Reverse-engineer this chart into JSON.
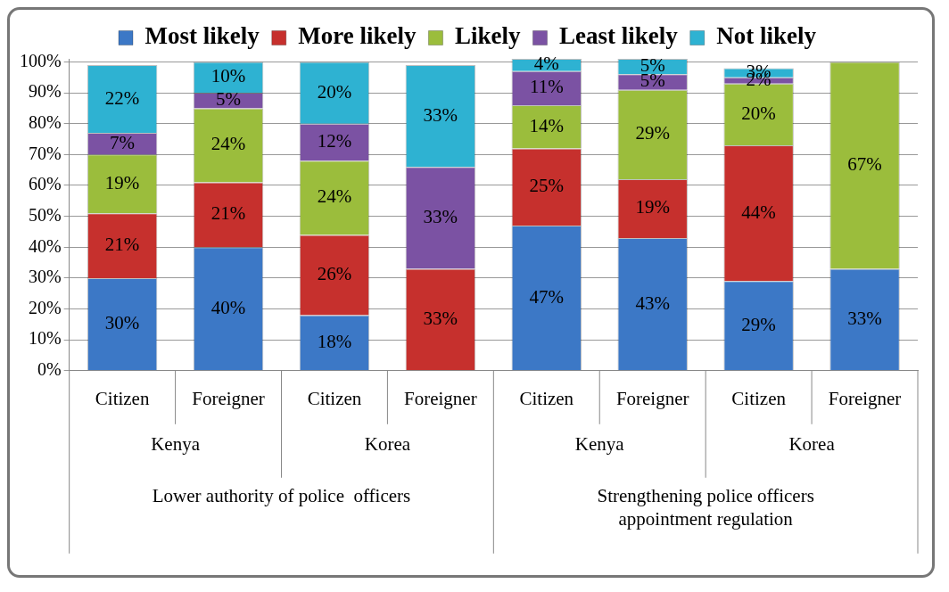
{
  "chart_data": {
    "type": "bar",
    "stacked": true,
    "categories": [
      "Citizen",
      "Foreigner",
      "Citizen",
      "Foreigner",
      "Citizen",
      "Foreigner",
      "Citizen",
      "Foreigner"
    ],
    "series": [
      {
        "name": "Most likely",
        "color": "#3c78c6",
        "values": [
          30,
          40,
          18,
          null,
          47,
          43,
          29,
          33
        ],
        "value_labels": [
          "30%",
          "40%",
          "18%",
          null,
          "47%",
          "43%",
          "29%",
          "33%"
        ]
      },
      {
        "name": "More likely",
        "color": "#c6302d",
        "values": [
          21,
          21,
          26,
          33,
          25,
          19,
          44,
          null
        ],
        "value_labels": [
          "21%",
          "21%",
          "26%",
          "33%",
          "25%",
          "19%",
          "44%",
          null
        ]
      },
      {
        "name": "Likely",
        "color": "#9bbd3c",
        "values": [
          19,
          24,
          24,
          null,
          14,
          29,
          20,
          67
        ],
        "value_labels": [
          "19%",
          "24%",
          "24%",
          null,
          "14%",
          "29%",
          "20%",
          "67%"
        ]
      },
      {
        "name": "Least likely",
        "color": "#7b52a3",
        "values": [
          7,
          5,
          12,
          33,
          11,
          5,
          2,
          null
        ],
        "value_labels": [
          "7%",
          "5%",
          "12%",
          "33%",
          "11%",
          "5%",
          "2%",
          null
        ]
      },
      {
        "name": "Not likely",
        "color": "#2eb2d2",
        "values": [
          22,
          10,
          20,
          33,
          4,
          5,
          3,
          null
        ],
        "value_labels": [
          "22%",
          "10%",
          "20%",
          "33%",
          "4%",
          "5%",
          "3%",
          null
        ]
      }
    ],
    "ylim": [
      0,
      101
    ],
    "yticks": [
      {
        "value": 0,
        "label": "0%"
      },
      {
        "value": 10,
        "label": "10%"
      },
      {
        "value": 20,
        "label": "20%"
      },
      {
        "value": 30,
        "label": "30%"
      },
      {
        "value": 40,
        "label": "40%"
      },
      {
        "value": 50,
        "label": "50%"
      },
      {
        "value": 60,
        "label": "60%"
      },
      {
        "value": 70,
        "label": "70%"
      },
      {
        "value": 80,
        "label": "80%"
      },
      {
        "value": 90,
        "label": "90%"
      },
      {
        "value": 100,
        "label": "100%"
      }
    ],
    "grid": "y",
    "legend": "top",
    "annotations": [
      "Kenya",
      "Korea",
      "Kenya",
      "Korea",
      "Lower authority of police  officers",
      "Strengthening police officers appointment regulation"
    ]
  }
}
